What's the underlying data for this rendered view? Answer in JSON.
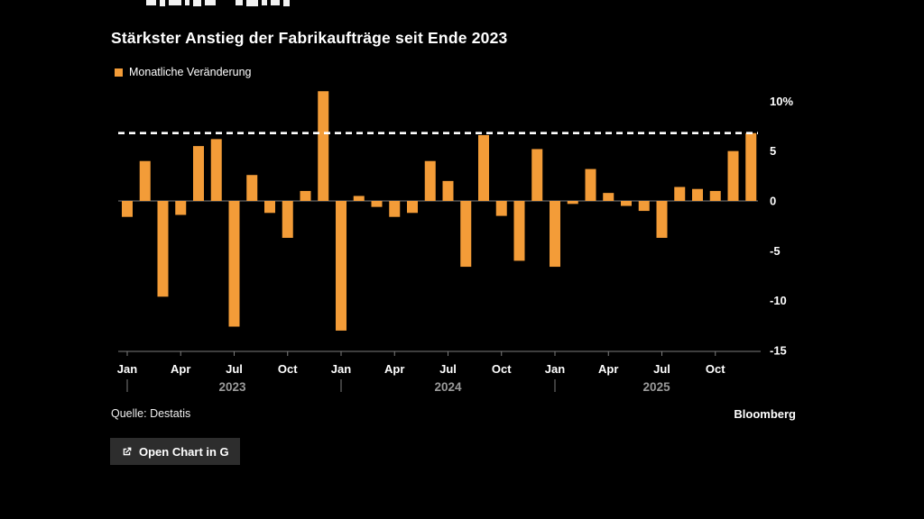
{
  "page": {
    "title": "Stärkster Anstieg der Fabrikaufträge seit Ende 2023",
    "legend_label": "Monatliche Veränderung",
    "source": "Quelle: Destatis",
    "brand": "Bloomberg",
    "open_chart_button_label": "Open Chart in G"
  },
  "colors": {
    "background": "#000000",
    "bar": "#F39C38",
    "text": "#FFFFFF",
    "axis": "#7D7D7D",
    "year_label": "#9A9A9A",
    "reference_line": "#FFFFFF",
    "button_background": "#2D2D2D"
  },
  "chart_data": {
    "type": "bar",
    "title": "Stärkster Anstieg der Fabrikaufträge seit Ende 2023",
    "series_name": "Monatliche Veränderung",
    "unit": "%",
    "grid": "off",
    "legend_position": "top-left",
    "y_axis_side": "right",
    "ylim": [
      -15,
      10
    ],
    "reference_line_value": 6.8,
    "categories": [
      "Jan 2023",
      "Feb 2023",
      "Mar 2023",
      "Apr 2023",
      "May 2023",
      "Jun 2023",
      "Jul 2023",
      "Aug 2023",
      "Sep 2023",
      "Oct 2023",
      "Nov 2023",
      "Dec 2023",
      "Jan 2024",
      "Feb 2024",
      "Mar 2024",
      "Apr 2024",
      "May 2024",
      "Jun 2024",
      "Jul 2024",
      "Aug 2024",
      "Sep 2024",
      "Oct 2024",
      "Nov 2024",
      "Dec 2024",
      "Jan 2025",
      "Feb 2025",
      "Mar 2025",
      "Apr 2025",
      "May 2025",
      "Jun 2025",
      "Jul 2025",
      "Aug 2025",
      "Sep 2025",
      "Oct 2025",
      "Nov 2025",
      "Dec 2025"
    ],
    "values": [
      -1.6,
      4.0,
      -9.6,
      -1.4,
      5.5,
      6.2,
      -12.6,
      2.6,
      -1.2,
      -3.7,
      1.0,
      11.0,
      -13.0,
      0.5,
      -0.6,
      -1.6,
      -1.2,
      4.0,
      2.0,
      -6.6,
      6.6,
      -1.5,
      -6.0,
      5.2,
      -6.6,
      -0.3,
      3.2,
      0.8,
      -0.5,
      -1.0,
      -3.7,
      1.4,
      1.2,
      1.0,
      5.0,
      6.8
    ],
    "yticks": [
      {
        "label": "10%",
        "value": 10
      },
      {
        "label": "5",
        "value": 5
      },
      {
        "label": "0",
        "value": 0
      },
      {
        "label": "-5",
        "value": -5
      },
      {
        "label": "-10",
        "value": -10
      },
      {
        "label": "-15",
        "value": -15
      }
    ],
    "xticks": [
      {
        "label": "Jan",
        "month": 0
      },
      {
        "label": "Apr",
        "month": 3
      },
      {
        "label": "Jul",
        "month": 6
      },
      {
        "label": "Oct",
        "month": 9
      },
      {
        "label": "Jan",
        "month": 12
      },
      {
        "label": "Apr",
        "month": 15
      },
      {
        "label": "Jul",
        "month": 18
      },
      {
        "label": "Oct",
        "month": 21
      },
      {
        "label": "Jan",
        "month": 24
      },
      {
        "label": "Apr",
        "month": 27
      },
      {
        "label": "Jul",
        "month": 30
      },
      {
        "label": "Oct",
        "month": 33
      }
    ],
    "years": [
      {
        "label": "2023",
        "divider_month": 0,
        "label_month": 5.9
      },
      {
        "label": "2024",
        "divider_month": 12,
        "label_month": 18
      },
      {
        "label": "2025",
        "divider_month": 24,
        "label_month": 29.7
      }
    ]
  }
}
